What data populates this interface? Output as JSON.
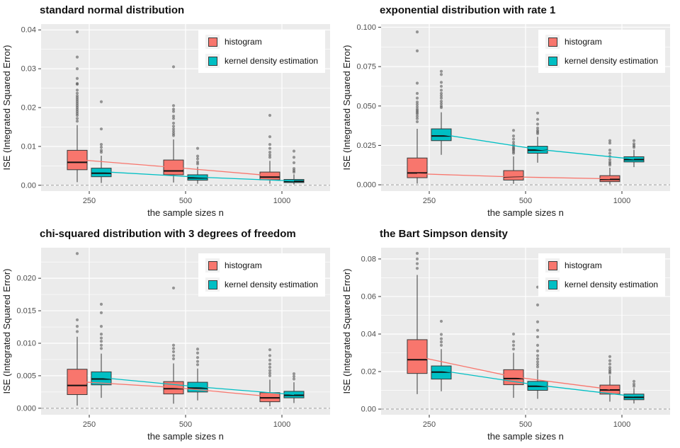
{
  "colors": {
    "histogram": "#F8766D",
    "kde": "#00BFC4",
    "panel_bg": "#EBEBEB",
    "grid": "#FFFFFF",
    "outlier": "#4D4D4D",
    "box_border": "#3A3A3A",
    "median": "#111111",
    "zero_line": "#9E9E9E",
    "tick_text": "#4D4D4D",
    "axis_text": "#1A1A1A"
  },
  "legend": {
    "position": "inside-top-right",
    "items": [
      {
        "label": "histogram",
        "color_key": "histogram"
      },
      {
        "label": "kernel density estimation",
        "color_key": "kde"
      }
    ]
  },
  "chart_data": [
    {
      "type": "boxplot",
      "title": "standard normal distribution",
      "xlabel": "the sample sizes n",
      "ylabel": "ISE (Integrated Squared Error)",
      "categories": [
        "250",
        "500",
        "1000"
      ],
      "ylim": [
        -0.0015,
        0.0415
      ],
      "yticks": [
        0,
        0.01,
        0.02,
        0.03,
        0.04
      ],
      "ytick_labels": [
        "0.00",
        "0.01",
        "0.02",
        "0.03",
        "0.04"
      ],
      "zero_line": 0,
      "grid": true,
      "series": [
        {
          "name": "histogram",
          "color_key": "histogram",
          "means": [
            0.0066,
            0.0046,
            0.0025
          ],
          "boxes": [
            {
              "whisker_low": 0.0008,
              "q1": 0.004,
              "median": 0.0059,
              "q3": 0.009,
              "whisker_high": 0.0155,
              "outliers": [
                0.0165,
                0.0172,
                0.018,
                0.0185,
                0.019,
                0.0195,
                0.02,
                0.0205,
                0.021,
                0.0215,
                0.022,
                0.0225,
                0.023,
                0.0237,
                0.0245,
                0.026,
                0.0262,
                0.0275,
                0.03,
                0.033,
                0.0395
              ]
            },
            {
              "whisker_low": 0.0007,
              "q1": 0.0027,
              "median": 0.0037,
              "q3": 0.0065,
              "whisker_high": 0.0118,
              "outliers": [
                0.0128,
                0.0133,
                0.0139,
                0.0145,
                0.0152,
                0.016,
                0.0172,
                0.0178,
                0.019,
                0.0196,
                0.0205,
                0.0305
              ]
            },
            {
              "whisker_low": 0.0004,
              "q1": 0.0014,
              "median": 0.0021,
              "q3": 0.0034,
              "whisker_high": 0.0063,
              "outliers": [
                0.0072,
                0.0078,
                0.0085,
                0.0095,
                0.0105,
                0.0125,
                0.018
              ]
            }
          ]
        },
        {
          "name": "kernel density estimation",
          "color_key": "kde",
          "means": [
            0.0035,
            0.0021,
            0.0011
          ],
          "boxes": [
            {
              "whisker_low": 0.0006,
              "q1": 0.0022,
              "median": 0.0031,
              "q3": 0.0044,
              "whisker_high": 0.0076,
              "outliers": [
                0.0085,
                0.009,
                0.0098,
                0.0105,
                0.0145,
                0.0215
              ]
            },
            {
              "whisker_low": 0.0004,
              "q1": 0.0013,
              "median": 0.0019,
              "q3": 0.0027,
              "whisker_high": 0.0048,
              "outliers": [
                0.0055,
                0.006,
                0.0068,
                0.0075,
                0.0095
              ]
            },
            {
              "whisker_low": 0.0002,
              "q1": 0.0007,
              "median": 0.001,
              "q3": 0.0015,
              "whisker_high": 0.0028,
              "outliers": [
                0.0034,
                0.0038,
                0.0043,
                0.0058,
                0.0072,
                0.0088
              ]
            }
          ]
        }
      ]
    },
    {
      "type": "boxplot",
      "title": "exponential distribution with rate 1",
      "xlabel": "the sample sizes n",
      "ylabel": "ISE (Integrated Squared Error)",
      "categories": [
        "250",
        "500",
        "1000"
      ],
      "ylim": [
        -0.004,
        0.102
      ],
      "yticks": [
        0,
        0.025,
        0.05,
        0.075,
        0.1
      ],
      "ytick_labels": [
        "0.000",
        "0.025",
        "0.050",
        "0.075",
        "0.100"
      ],
      "zero_line": 0,
      "grid": true,
      "series": [
        {
          "name": "histogram",
          "color_key": "histogram",
          "means": [
            0.007,
            0.005,
            0.0038
          ],
          "boxes": [
            {
              "whisker_low": 0.0008,
              "q1": 0.0045,
              "median": 0.0075,
              "q3": 0.017,
              "whisker_high": 0.0355,
              "outliers": [
                0.04,
                0.042,
                0.0435,
                0.045,
                0.046,
                0.047,
                0.048,
                0.0495,
                0.051,
                0.0525,
                0.055,
                0.058,
                0.0645,
                0.085,
                0.097
              ]
            },
            {
              "whisker_low": 0.0006,
              "q1": 0.003,
              "median": 0.005,
              "q3": 0.009,
              "whisker_high": 0.018,
              "outliers": [
                0.02,
                0.021,
                0.022,
                0.0228,
                0.0235,
                0.0245,
                0.0255,
                0.027,
                0.029,
                0.031,
                0.0345
              ]
            },
            {
              "whisker_low": 0.0004,
              "q1": 0.002,
              "median": 0.0034,
              "q3": 0.0058,
              "whisker_high": 0.0108,
              "outliers": [
                0.0125,
                0.0135,
                0.0145,
                0.016,
                0.018,
                0.02,
                0.022,
                0.0265,
                0.028
              ]
            }
          ]
        },
        {
          "name": "kernel density estimation",
          "color_key": "kde",
          "means": [
            0.032,
            0.0225,
            0.0163
          ],
          "boxes": [
            {
              "whisker_low": 0.019,
              "q1": 0.028,
              "median": 0.031,
              "q3": 0.0355,
              "whisker_high": 0.046,
              "outliers": [
                0.049,
                0.05,
                0.0515,
                0.053,
                0.055,
                0.0565,
                0.058,
                0.06,
                0.0625,
                0.065,
                0.07,
                0.072
              ]
            },
            {
              "whisker_low": 0.014,
              "q1": 0.02,
              "median": 0.022,
              "q3": 0.0245,
              "whisker_high": 0.0305,
              "outliers": [
                0.0325,
                0.0335,
                0.0345,
                0.036,
                0.0385,
                0.0415,
                0.0455
              ]
            },
            {
              "whisker_low": 0.0112,
              "q1": 0.0145,
              "median": 0.016,
              "q3": 0.0178,
              "whisker_high": 0.0222,
              "outliers": [
                0.0238,
                0.0248,
                0.026,
                0.028
              ]
            }
          ]
        }
      ]
    },
    {
      "type": "boxplot",
      "title": "chi-squared distribution with 3 degrees of freedom",
      "xlabel": "the sample sizes n",
      "ylabel": "ISE (Integrated Squared Error)",
      "categories": [
        "250",
        "500",
        "1000"
      ],
      "ylim": [
        -0.001,
        0.0247
      ],
      "yticks": [
        0,
        0.005,
        0.01,
        0.015,
        0.02
      ],
      "ytick_labels": [
        "0.000",
        "0.005",
        "0.010",
        "0.015",
        "0.020"
      ],
      "zero_line": 0,
      "grid": true,
      "series": [
        {
          "name": "histogram",
          "color_key": "histogram",
          "means": [
            0.0041,
            0.0032,
            0.0018
          ],
          "boxes": [
            {
              "whisker_low": 0.0004,
              "q1": 0.0021,
              "median": 0.0035,
              "q3": 0.006,
              "whisker_high": 0.011,
              "outliers": [
                0.0118,
                0.0126,
                0.0136,
                0.0238
              ]
            },
            {
              "whisker_low": 0.0007,
              "q1": 0.0022,
              "median": 0.003,
              "q3": 0.0041,
              "whisker_high": 0.0069,
              "outliers": [
                0.0076,
                0.0081,
                0.0087,
                0.0092,
                0.0097,
                0.0185
              ]
            },
            {
              "whisker_low": 0.0003,
              "q1": 0.001,
              "median": 0.0016,
              "q3": 0.0024,
              "whisker_high": 0.0044,
              "outliers": [
                0.005,
                0.0054,
                0.0058,
                0.0063,
                0.0068,
                0.0074,
                0.0081,
                0.009
              ]
            }
          ]
        },
        {
          "name": "kernel density estimation",
          "color_key": "kde",
          "means": [
            0.0047,
            0.0033,
            0.0021
          ],
          "boxes": [
            {
              "whisker_low": 0.0016,
              "q1": 0.0036,
              "median": 0.0045,
              "q3": 0.0056,
              "whisker_high": 0.0084,
              "outliers": [
                0.0092,
                0.0097,
                0.0103,
                0.0108,
                0.0114,
                0.0126,
                0.0147,
                0.016
              ]
            },
            {
              "whisker_low": 0.0012,
              "q1": 0.0025,
              "median": 0.0031,
              "q3": 0.004,
              "whisker_high": 0.0061,
              "outliers": [
                0.0067,
                0.0072,
                0.0078,
                0.0085,
                0.0091
              ]
            },
            {
              "whisker_low": 0.0008,
              "q1": 0.0016,
              "median": 0.002,
              "q3": 0.0026,
              "whisker_high": 0.004,
              "outliers": [
                0.0045,
                0.0049,
                0.0053
              ]
            }
          ]
        }
      ]
    },
    {
      "type": "boxplot",
      "title": "the Bart Simpson density",
      "xlabel": "the sample sizes n",
      "ylabel": "ISE (Integrated Squared Error)",
      "categories": [
        "250",
        "500",
        "1000"
      ],
      "ylim": [
        -0.003,
        0.086
      ],
      "yticks": [
        0,
        0.02,
        0.04,
        0.06,
        0.08
      ],
      "ytick_labels": [
        "0.00",
        "0.02",
        "0.04",
        "0.06",
        "0.08"
      ],
      "zero_line": 0,
      "grid": true,
      "series": [
        {
          "name": "histogram",
          "color_key": "histogram",
          "means": [
            0.028,
            0.0172,
            0.0106
          ],
          "boxes": [
            {
              "whisker_low": 0.008,
              "q1": 0.019,
              "median": 0.0263,
              "q3": 0.037,
              "whisker_high": 0.0715,
              "outliers": [
                0.075,
                0.0775,
                0.08,
                0.083
              ]
            },
            {
              "whisker_low": 0.006,
              "q1": 0.013,
              "median": 0.0163,
              "q3": 0.021,
              "whisker_high": 0.03,
              "outliers": [
                0.032,
                0.034,
                0.036,
                0.04
              ]
            },
            {
              "whisker_low": 0.004,
              "q1": 0.008,
              "median": 0.0102,
              "q3": 0.0128,
              "whisker_high": 0.018,
              "outliers": [
                0.0192,
                0.02,
                0.021,
                0.0222,
                0.024,
                0.0258,
                0.028
              ]
            }
          ]
        },
        {
          "name": "kernel density estimation",
          "color_key": "kde",
          "means": [
            0.0205,
            0.0128,
            0.0068
          ],
          "boxes": [
            {
              "whisker_low": 0.0095,
              "q1": 0.016,
              "median": 0.0197,
              "q3": 0.023,
              "whisker_high": 0.032,
              "outliers": [
                0.034,
                0.0358,
                0.0375,
                0.0398,
                0.0468
              ]
            },
            {
              "whisker_low": 0.0055,
              "q1": 0.01,
              "median": 0.0122,
              "q3": 0.0148,
              "whisker_high": 0.021,
              "outliers": [
                0.0225,
                0.0238,
                0.0252,
                0.0268,
                0.0285,
                0.031,
                0.034,
                0.0385,
                0.042,
                0.0465,
                0.0555,
                0.065
              ]
            },
            {
              "whisker_low": 0.003,
              "q1": 0.005,
              "median": 0.0063,
              "q3": 0.008,
              "whisker_high": 0.0112,
              "outliers": [
                0.0122,
                0.0133,
                0.0148
              ]
            }
          ]
        }
      ]
    }
  ]
}
